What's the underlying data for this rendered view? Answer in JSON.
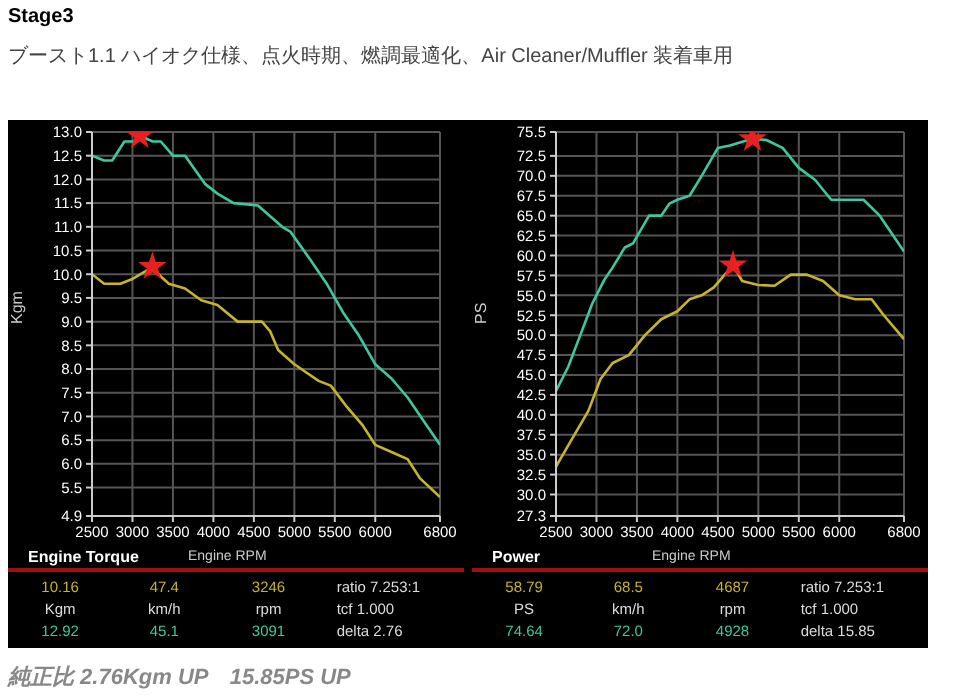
{
  "chart_data": [
    {
      "type": "line",
      "title": "Engine Torque",
      "xlabel": "Engine RPM",
      "ylabel": "Kgm",
      "xlim": [
        2500,
        6800
      ],
      "xticks": [
        2500,
        3000,
        3500,
        4000,
        4500,
        5000,
        5500,
        6000,
        6800
      ],
      "ylim": [
        4.9,
        13.0
      ],
      "yticks": [
        4.9,
        {
          "value": 5.5,
          "label": "5.5"
        },
        {
          "value": 6,
          "label": "6.0"
        },
        {
          "value": 6.5,
          "label": "6.5"
        },
        {
          "value": 7,
          "label": "7.0"
        },
        {
          "value": 7.5,
          "label": "7.5"
        },
        {
          "value": 8,
          "label": "8.0"
        },
        {
          "value": 8.5,
          "label": "8.5"
        },
        {
          "value": 9,
          "label": "9.0"
        },
        {
          "value": 9.5,
          "label": "9.5"
        },
        {
          "value": 10,
          "label": "10.0"
        },
        {
          "value": 10.5,
          "label": "10.5"
        },
        {
          "value": 11,
          "label": "11.0"
        },
        {
          "value": 11.5,
          "label": "11.5"
        },
        {
          "value": 12,
          "label": "12.0"
        },
        {
          "value": 12.5,
          "label": "12.5"
        },
        {
          "value": 13,
          "label": "13.0"
        }
      ],
      "grid": true,
      "line_style": "solid",
      "series": [
        {
          "color": "#3cc8a0",
          "x": [
            2500,
            2650,
            2750,
            2900,
            3050,
            3091,
            3250,
            3350,
            3500,
            3650,
            3900,
            4050,
            4250,
            4550,
            4850,
            4950,
            5200,
            5400,
            5600,
            5800,
            6000,
            6200,
            6400,
            6600,
            6800
          ],
          "values": [
            12.5,
            12.4,
            12.4,
            12.8,
            12.8,
            12.92,
            12.8,
            12.8,
            12.5,
            12.5,
            11.9,
            11.7,
            11.5,
            11.45,
            11.0,
            10.9,
            10.3,
            9.8,
            9.2,
            8.7,
            8.1,
            7.8,
            7.4,
            6.9,
            6.4
          ]
        },
        {
          "color": "#c8b428",
          "x": [
            2500,
            2650,
            2850,
            3000,
            3200,
            3246,
            3350,
            3450,
            3650,
            3850,
            4050,
            4300,
            4600,
            4700,
            4800,
            5000,
            5300,
            5450,
            5650,
            5850,
            6000,
            6200,
            6400,
            6550,
            6800
          ],
          "values": [
            10.0,
            9.8,
            9.8,
            9.9,
            10.1,
            10.16,
            9.95,
            9.8,
            9.7,
            9.45,
            9.35,
            9.0,
            9.0,
            8.8,
            8.4,
            8.1,
            7.75,
            7.65,
            7.2,
            6.8,
            6.4,
            6.25,
            6.1,
            5.7,
            5.3
          ]
        },
        {
          "type": "scatter",
          "marker": "star",
          "color": "#e82020",
          "x": [
            3091,
            3246
          ],
          "values": [
            12.92,
            10.16
          ]
        }
      ],
      "annotations": [
        "Stage3",
        "ブースト1.1 ハイオク仕様、点火時期、燃調最適化、Air Cleaner/Muffler 装着車用",
        "純正比 2.76Kgm UP　15.85PS UP",
        "10.16",
        "47.4",
        "3246",
        "ratio 7.253:1",
        "Kgm",
        "km/h",
        "rpm",
        "tcf 1.000",
        "12.92",
        "45.1",
        "3091",
        "delta 2.76"
      ]
    },
    {
      "type": "line",
      "title": "Power",
      "xlabel": "Engine RPM",
      "ylabel": "PS",
      "xlim": [
        2500,
        6800
      ],
      "xticks": [
        2500,
        3000,
        3500,
        4000,
        4500,
        5000,
        5500,
        6000,
        6800
      ],
      "ylim": [
        27.3,
        75.5
      ],
      "yticks": [
        27.3,
        {
          "value": 30,
          "label": "30.0"
        },
        32.5,
        {
          "value": 35,
          "label": "35.0"
        },
        37.5,
        {
          "value": 40,
          "label": "40.0"
        },
        42.5,
        {
          "value": 45,
          "label": "45.0"
        },
        47.5,
        {
          "value": 50,
          "label": "50.0"
        },
        52.5,
        {
          "value": 55,
          "label": "55.0"
        },
        57.5,
        {
          "value": 60,
          "label": "60.0"
        },
        62.5,
        {
          "value": 65,
          "label": "65.0"
        },
        67.5,
        {
          "value": 70,
          "label": "70.0"
        },
        72.5,
        75.5
      ],
      "grid": true,
      "line_style": "solid",
      "series": [
        {
          "color": "#3cc8a0",
          "x": [
            2500,
            2650,
            2800,
            2950,
            3100,
            3200,
            3350,
            3450,
            3650,
            3800,
            3900,
            4000,
            4150,
            4300,
            4500,
            4650,
            4928,
            5100,
            5300,
            5500,
            5700,
            5900,
            6100,
            6300,
            6500,
            6800
          ],
          "values": [
            43,
            46,
            50,
            54,
            57,
            58.5,
            61,
            61.5,
            65,
            65,
            66.5,
            67,
            67.5,
            70,
            73.5,
            73.8,
            74.64,
            74.5,
            73.5,
            71,
            69.5,
            67,
            67,
            67,
            65,
            60.5
          ]
        },
        {
          "color": "#c8b428",
          "x": [
            2500,
            2700,
            2900,
            3050,
            3200,
            3400,
            3600,
            3800,
            4000,
            4150,
            4300,
            4450,
            4687,
            4800,
            5000,
            5200,
            5400,
            5600,
            5800,
            6000,
            6200,
            6400,
            6550,
            6800
          ],
          "values": [
            33.5,
            37,
            40.5,
            44.5,
            46.5,
            47.5,
            50,
            52,
            53,
            54.5,
            55,
            56,
            58.79,
            56.8,
            56.3,
            56.2,
            57.6,
            57.6,
            56.8,
            55,
            54.5,
            54.5,
            52.5,
            49.5
          ]
        },
        {
          "type": "scatter",
          "marker": "star",
          "color": "#e82020",
          "x": [
            4687,
            4928
          ],
          "values": [
            58.79,
            74.64
          ]
        }
      ],
      "annotations": [
        "58.79",
        "68.5",
        "4687",
        "ratio 7.253:1",
        "PS",
        "km/h",
        "rpm",
        "tcf 1.000",
        "74.64",
        "72.0",
        "4928",
        "delta 15.85"
      ]
    }
  ]
}
